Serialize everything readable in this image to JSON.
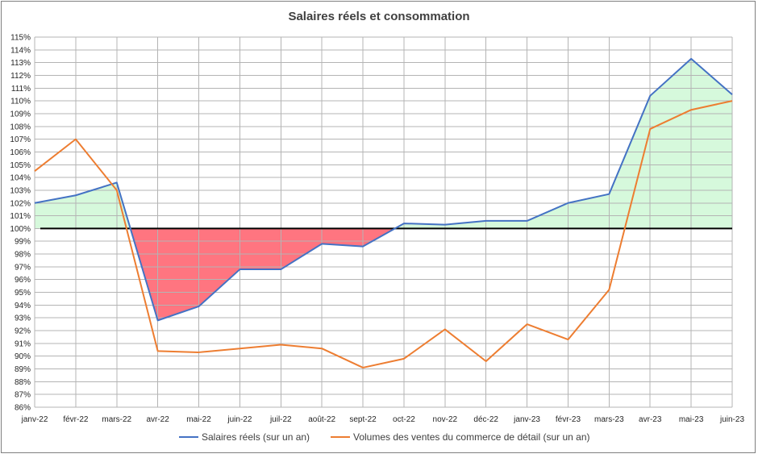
{
  "chart_data": {
    "type": "line",
    "title": "Salaires réels et consommation",
    "xlabel": "",
    "ylabel": "",
    "categories": [
      "janv-22",
      "févr-22",
      "mars-22",
      "avr-22",
      "mai-22",
      "juin-22",
      "juil-22",
      "août-22",
      "sept-22",
      "oct-22",
      "nov-22",
      "déc-22",
      "janv-23",
      "févr-23",
      "mars-23",
      "avr-23",
      "mai-23",
      "juin-23"
    ],
    "ylim": [
      86,
      115
    ],
    "yticks": [
      "86%",
      "87%",
      "88%",
      "89%",
      "90%",
      "91%",
      "92%",
      "93%",
      "94%",
      "95%",
      "96%",
      "97%",
      "98%",
      "99%",
      "100%",
      "101%",
      "102%",
      "103%",
      "104%",
      "105%",
      "106%",
      "107%",
      "108%",
      "109%",
      "110%",
      "111%",
      "112%",
      "113%",
      "114%",
      "115%"
    ],
    "reference_line": 100,
    "grid": true,
    "legend_position": "bottom",
    "series": [
      {
        "name": "Salaires réels (sur un an)",
        "color": "#4472c4",
        "values": [
          102.0,
          102.6,
          103.6,
          92.8,
          93.9,
          96.8,
          96.8,
          98.8,
          98.6,
          100.4,
          100.3,
          100.6,
          100.6,
          102.0,
          102.7,
          110.4,
          113.3,
          110.5
        ]
      },
      {
        "name": "Volumes des ventes du commerce de détail (sur un an)",
        "color": "#ed7d31",
        "values": [
          104.5,
          107.0,
          103.0,
          90.4,
          90.3,
          90.6,
          90.9,
          90.6,
          89.1,
          89.8,
          92.1,
          89.6,
          92.5,
          91.3,
          95.2,
          107.8,
          109.3,
          110.0
        ]
      }
    ],
    "fills": {
      "below_100": "#ff7580",
      "above_100": "#d6f9dc"
    }
  }
}
